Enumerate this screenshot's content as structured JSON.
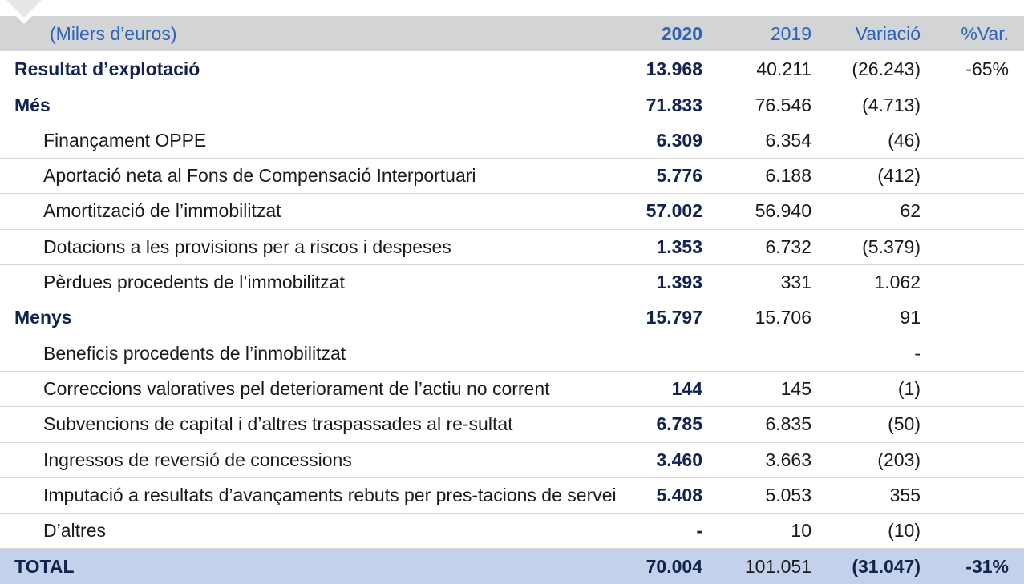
{
  "header": {
    "unit_label": "(Milers d’euros)",
    "col_2020": "2020",
    "col_2019": "2019",
    "col_var": "Variació",
    "col_pct": "%Var."
  },
  "rows": [
    {
      "label": "Resultat d’explotació",
      "v2020": "13.968",
      "v2019": "40.211",
      "var": "(26.243)",
      "pct": "-65%"
    },
    {
      "label": "Més",
      "v2020": "71.833",
      "v2019": "76.546",
      "var": "(4.713)",
      "pct": ""
    },
    {
      "label": "Finançament OPPE",
      "v2020": "6.309",
      "v2019": "6.354",
      "var": "(46)",
      "pct": ""
    },
    {
      "label": "Aportació neta al Fons de Compensació Interportuari",
      "v2020": "5.776",
      "v2019": "6.188",
      "var": "(412)",
      "pct": ""
    },
    {
      "label": "Amortització de l’immobilitzat",
      "v2020": "57.002",
      "v2019": "56.940",
      "var": "62",
      "pct": ""
    },
    {
      "label": "Dotacions a les provisions per a riscos i despeses",
      "v2020": "1.353",
      "v2019": "6.732",
      "var": "(5.379)",
      "pct": ""
    },
    {
      "label": "Pèrdues procedents de l’immobilitzat",
      "v2020": "1.393",
      "v2019": "331",
      "var": "1.062",
      "pct": ""
    },
    {
      "label": "Menys",
      "v2020": "15.797",
      "v2019": "15.706",
      "var": "91",
      "pct": ""
    },
    {
      "label": "Beneficis procedents de l’inmobilitzat",
      "v2020": "",
      "v2019": "",
      "var": "-",
      "pct": ""
    },
    {
      "label": "Correccions valoratives pel deteriorament de l’actiu no corrent",
      "v2020": "144",
      "v2019": "145",
      "var": "(1)",
      "pct": ""
    },
    {
      "label": "Subvencions de capital i d’altres traspassades al re-sultat",
      "v2020": "6.785",
      "v2019": "6.835",
      "var": "(50)",
      "pct": ""
    },
    {
      "label": "Ingressos de reversió de concessions",
      "v2020": "3.460",
      "v2019": "3.663",
      "var": "(203)",
      "pct": ""
    },
    {
      "label": "Imputació a resultats d’avançaments rebuts per pres-tacions de servei",
      "v2020": "5.408",
      "v2019": "5.053",
      "var": "355",
      "pct": ""
    },
    {
      "label": "D’altres",
      "v2020": "-",
      "v2019": "10",
      "var": "(10)",
      "pct": ""
    }
  ],
  "total": {
    "label": "TOTAL",
    "v2020": "70.004",
    "v2019": "101.051",
    "var": "(31.047)",
    "pct": "-31%"
  },
  "colors": {
    "header_bg": "#d3d4d6",
    "header_text": "#2d62b5",
    "navy": "#12234f",
    "total_bg": "#c3d2ea"
  }
}
